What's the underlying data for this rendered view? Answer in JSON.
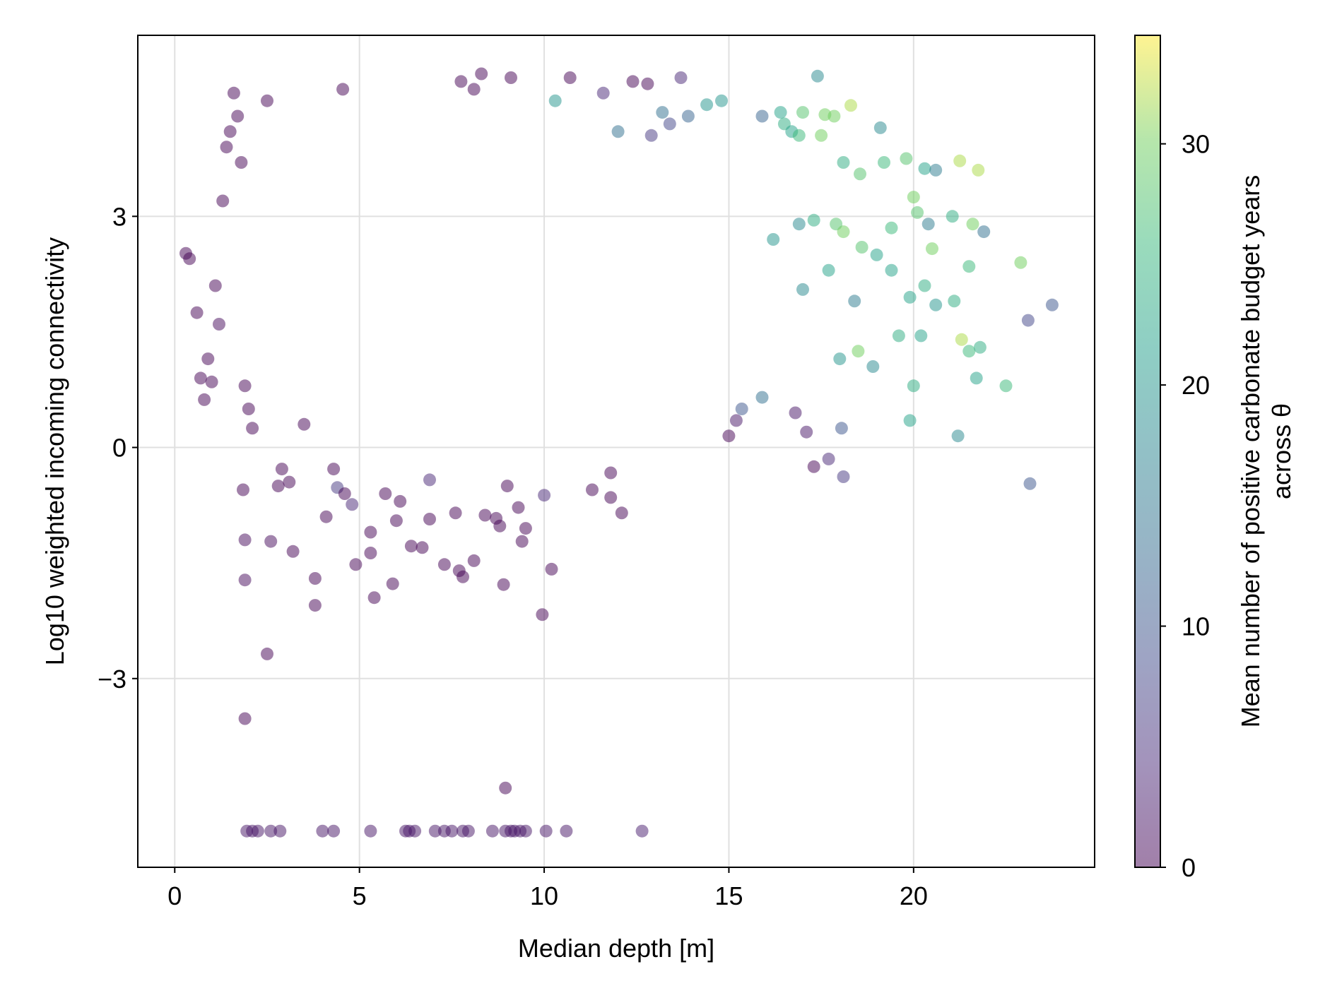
{
  "chart_data": {
    "type": "scatter",
    "xlabel": "Median depth [m]",
    "ylabel": "Log10 weighted incoming connectivity",
    "xlim": [
      -1,
      24.9
    ],
    "ylim": [
      -5.45,
      5.35
    ],
    "x_ticks": [
      0,
      5,
      10,
      15,
      20
    ],
    "x_tick_labels": [
      "0",
      "5",
      "10",
      "15",
      "20"
    ],
    "y_ticks": [
      -3,
      0,
      3
    ],
    "y_tick_labels": [
      "−3",
      "0",
      "3"
    ],
    "grid": true,
    "colorbar": {
      "label_line1": "Mean number of positive carbonate budget years",
      "label_line2": "across θ",
      "colormap": "viridis",
      "range": [
        0,
        34.5
      ],
      "ticks": [
        0,
        10,
        20,
        30
      ],
      "tick_labels": [
        "0",
        "10",
        "20",
        "30"
      ]
    },
    "points": [
      [
        0.3,
        2.52,
        0
      ],
      [
        0.4,
        2.45,
        0
      ],
      [
        0.6,
        1.75,
        0
      ],
      [
        0.7,
        0.9,
        0
      ],
      [
        0.8,
        0.62,
        0
      ],
      [
        0.9,
        1.15,
        0
      ],
      [
        1.0,
        0.85,
        0
      ],
      [
        1.1,
        2.1,
        0
      ],
      [
        1.2,
        1.6,
        1
      ],
      [
        1.3,
        3.2,
        0
      ],
      [
        1.4,
        3.9,
        0
      ],
      [
        1.5,
        4.1,
        0
      ],
      [
        1.6,
        4.6,
        0
      ],
      [
        1.7,
        4.3,
        0
      ],
      [
        1.8,
        3.7,
        0
      ],
      [
        1.9,
        0.8,
        0
      ],
      [
        2.0,
        0.5,
        0
      ],
      [
        2.1,
        0.25,
        0
      ],
      [
        1.85,
        -0.55,
        0
      ],
      [
        1.9,
        -1.2,
        1
      ],
      [
        1.9,
        -1.72,
        1
      ],
      [
        1.9,
        -3.52,
        0
      ],
      [
        2.5,
        -2.68,
        0
      ],
      [
        2.6,
        -1.22,
        1
      ],
      [
        2.8,
        -0.5,
        0
      ],
      [
        2.9,
        -0.28,
        0
      ],
      [
        3.1,
        -0.45,
        0
      ],
      [
        3.2,
        -1.35,
        0
      ],
      [
        3.5,
        0.3,
        0
      ],
      [
        3.8,
        -1.7,
        0
      ],
      [
        3.8,
        -2.05,
        0
      ],
      [
        4.1,
        -0.9,
        0
      ],
      [
        4.3,
        -0.28,
        0
      ],
      [
        4.4,
        -0.52,
        6
      ],
      [
        4.6,
        -0.6,
        0
      ],
      [
        4.8,
        -0.74,
        4
      ],
      [
        4.9,
        -1.52,
        0
      ],
      [
        5.3,
        -1.1,
        0
      ],
      [
        5.3,
        -1.37,
        0
      ],
      [
        5.4,
        -1.95,
        0
      ],
      [
        5.7,
        -0.6,
        0
      ],
      [
        5.9,
        -1.77,
        0
      ],
      [
        6.0,
        -0.95,
        0
      ],
      [
        6.1,
        -0.7,
        0
      ],
      [
        6.4,
        -1.28,
        0
      ],
      [
        6.7,
        -1.3,
        0
      ],
      [
        6.9,
        -0.93,
        0
      ],
      [
        6.9,
        -0.42,
        4
      ],
      [
        7.3,
        -1.52,
        0
      ],
      [
        7.6,
        -0.85,
        0
      ],
      [
        7.7,
        -1.6,
        0
      ],
      [
        7.8,
        -1.68,
        0
      ],
      [
        8.1,
        -1.47,
        0
      ],
      [
        8.4,
        -0.88,
        0
      ],
      [
        8.7,
        -0.92,
        0
      ],
      [
        8.8,
        -1.02,
        0
      ],
      [
        8.9,
        -1.78,
        0
      ],
      [
        9.0,
        -0.5,
        0
      ],
      [
        9.3,
        -0.78,
        0
      ],
      [
        9.4,
        -1.22,
        0
      ],
      [
        9.5,
        -1.05,
        0
      ],
      [
        10.0,
        -0.62,
        4
      ],
      [
        10.2,
        -1.58,
        0
      ],
      [
        9.95,
        -2.17,
        0
      ],
      [
        11.3,
        -0.55,
        0
      ],
      [
        11.8,
        -0.65,
        0
      ],
      [
        12.1,
        -0.85,
        0
      ],
      [
        11.8,
        -0.33,
        0
      ],
      [
        1.95,
        -4.98,
        2
      ],
      [
        2.1,
        -4.98,
        2
      ],
      [
        2.25,
        -4.98,
        2
      ],
      [
        2.6,
        -4.98,
        2
      ],
      [
        2.85,
        -4.98,
        2
      ],
      [
        4.0,
        -4.98,
        2
      ],
      [
        4.3,
        -4.98,
        2
      ],
      [
        5.3,
        -4.98,
        2
      ],
      [
        6.25,
        -4.98,
        2
      ],
      [
        6.35,
        -4.98,
        2
      ],
      [
        6.5,
        -4.98,
        2
      ],
      [
        7.05,
        -4.98,
        2
      ],
      [
        7.3,
        -4.98,
        2
      ],
      [
        7.5,
        -4.98,
        2
      ],
      [
        7.8,
        -4.98,
        2
      ],
      [
        7.95,
        -4.98,
        2
      ],
      [
        8.6,
        -4.98,
        2
      ],
      [
        8.95,
        -4.98,
        2
      ],
      [
        9.1,
        -4.98,
        2
      ],
      [
        9.2,
        -4.98,
        2
      ],
      [
        9.35,
        -4.98,
        2
      ],
      [
        9.5,
        -4.98,
        2
      ],
      [
        10.05,
        -4.98,
        2
      ],
      [
        10.6,
        -4.98,
        2
      ],
      [
        12.65,
        -4.98,
        3
      ],
      [
        8.95,
        -4.42,
        0
      ],
      [
        8.3,
        4.85,
        0
      ],
      [
        9.1,
        4.8,
        0
      ],
      [
        10.7,
        4.8,
        0
      ],
      [
        7.75,
        4.75,
        0
      ],
      [
        11.6,
        4.6,
        4
      ],
      [
        13.7,
        4.8,
        4
      ],
      [
        12.4,
        4.75,
        0
      ],
      [
        12.8,
        4.72,
        0
      ],
      [
        8.1,
        4.65,
        0
      ],
      [
        4.55,
        4.65,
        0
      ],
      [
        2.5,
        4.5,
        0
      ],
      [
        17.4,
        4.82,
        18
      ],
      [
        14.4,
        4.45,
        20
      ],
      [
        15.9,
        4.3,
        12
      ],
      [
        16.4,
        4.35,
        22
      ],
      [
        17.0,
        4.35,
        28
      ],
      [
        17.6,
        4.32,
        30
      ],
      [
        17.85,
        4.3,
        30
      ],
      [
        18.3,
        4.44,
        32
      ],
      [
        13.9,
        4.3,
        12
      ],
      [
        14.8,
        4.5,
        20
      ],
      [
        13.4,
        4.2,
        8
      ],
      [
        12.0,
        4.1,
        14
      ],
      [
        12.9,
        4.05,
        6
      ],
      [
        10.3,
        4.5,
        20
      ],
      [
        13.2,
        4.35,
        14
      ],
      [
        16.5,
        4.2,
        24
      ],
      [
        16.7,
        4.1,
        22
      ],
      [
        16.9,
        4.05,
        26
      ],
      [
        17.5,
        4.05,
        30
      ],
      [
        19.1,
        4.15,
        18
      ],
      [
        18.1,
        3.7,
        24
      ],
      [
        18.55,
        3.55,
        28
      ],
      [
        19.2,
        3.7,
        26
      ],
      [
        19.8,
        3.75,
        28
      ],
      [
        20.3,
        3.62,
        22
      ],
      [
        20.6,
        3.6,
        16
      ],
      [
        21.25,
        3.72,
        32
      ],
      [
        21.75,
        3.6,
        32
      ],
      [
        20.0,
        3.25,
        30
      ],
      [
        20.1,
        3.05,
        28
      ],
      [
        20.5,
        2.58,
        30
      ],
      [
        20.4,
        2.9,
        16
      ],
      [
        21.05,
        3.0,
        24
      ],
      [
        21.6,
        2.9,
        30
      ],
      [
        21.9,
        2.8,
        14
      ],
      [
        21.5,
        2.35,
        26
      ],
      [
        22.9,
        2.4,
        30
      ],
      [
        23.75,
        1.85,
        10
      ],
      [
        23.1,
        1.65,
        8
      ],
      [
        22.5,
        0.8,
        26
      ],
      [
        23.15,
        -0.47,
        10
      ],
      [
        21.2,
        0.15,
        18
      ],
      [
        21.5,
        1.25,
        26
      ],
      [
        21.3,
        1.4,
        32
      ],
      [
        21.8,
        1.3,
        24
      ],
      [
        21.7,
        0.9,
        22
      ],
      [
        21.1,
        1.9,
        24
      ],
      [
        20.6,
        1.85,
        20
      ],
      [
        20.2,
        1.45,
        22
      ],
      [
        19.9,
        0.35,
        22
      ],
      [
        20.0,
        0.8,
        24
      ],
      [
        19.6,
        1.45,
        24
      ],
      [
        18.9,
        1.05,
        18
      ],
      [
        18.5,
        1.25,
        30
      ],
      [
        18.0,
        1.15,
        20
      ],
      [
        18.05,
        0.25,
        10
      ],
      [
        18.1,
        -0.38,
        6
      ],
      [
        17.7,
        -0.15,
        4
      ],
      [
        17.3,
        -0.25,
        0
      ],
      [
        17.1,
        0.2,
        2
      ],
      [
        16.8,
        0.45,
        2
      ],
      [
        15.9,
        0.65,
        14
      ],
      [
        15.0,
        0.15,
        0
      ],
      [
        15.2,
        0.35,
        2
      ],
      [
        15.35,
        0.5,
        10
      ],
      [
        17.0,
        2.05,
        18
      ],
      [
        17.7,
        2.3,
        22
      ],
      [
        18.4,
        1.9,
        16
      ],
      [
        19.0,
        2.5,
        22
      ],
      [
        19.4,
        2.3,
        22
      ],
      [
        19.9,
        1.95,
        22
      ],
      [
        20.3,
        2.1,
        24
      ],
      [
        16.2,
        2.7,
        20
      ],
      [
        16.9,
        2.9,
        18
      ],
      [
        17.3,
        2.95,
        24
      ],
      [
        17.9,
        2.9,
        28
      ],
      [
        18.1,
        2.8,
        30
      ],
      [
        18.6,
        2.6,
        28
      ],
      [
        19.4,
        2.85,
        26
      ]
    ]
  }
}
